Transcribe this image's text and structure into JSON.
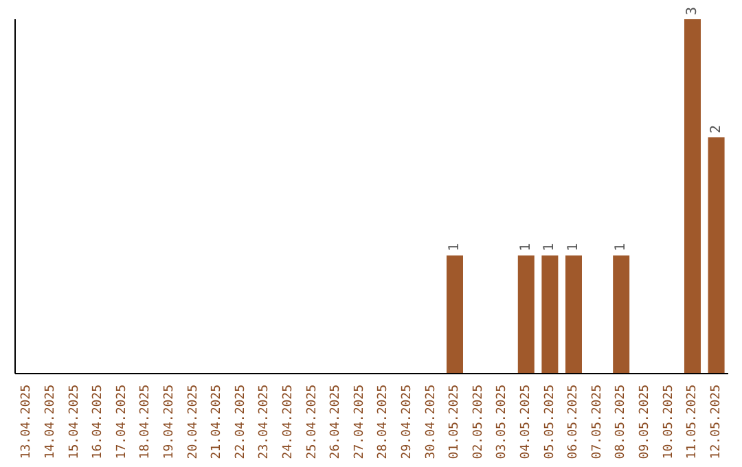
{
  "chart_data": {
    "type": "bar",
    "categories": [
      "13.04.2025",
      "14.04.2025",
      "15.04.2025",
      "16.04.2025",
      "17.04.2025",
      "18.04.2025",
      "19.04.2025",
      "20.04.2025",
      "21.04.2025",
      "22.04.2025",
      "23.04.2025",
      "24.04.2025",
      "25.04.2025",
      "26.04.2025",
      "27.04.2025",
      "28.04.2025",
      "29.04.2025",
      "30.04.2025",
      "01.05.2025",
      "02.05.2025",
      "03.05.2025",
      "04.05.2025",
      "05.05.2025",
      "06.05.2025",
      "07.05.2025",
      "08.05.2025",
      "09.05.2025",
      "10.05.2025",
      "11.05.2025",
      "12.05.2025"
    ],
    "values": [
      null,
      null,
      null,
      null,
      null,
      null,
      null,
      null,
      null,
      null,
      null,
      null,
      null,
      null,
      null,
      null,
      null,
      null,
      1,
      null,
      null,
      1,
      1,
      1,
      null,
      1,
      null,
      null,
      3,
      2
    ],
    "data_labels": true,
    "color": "#a0592b",
    "grid": false,
    "legend": false
  }
}
